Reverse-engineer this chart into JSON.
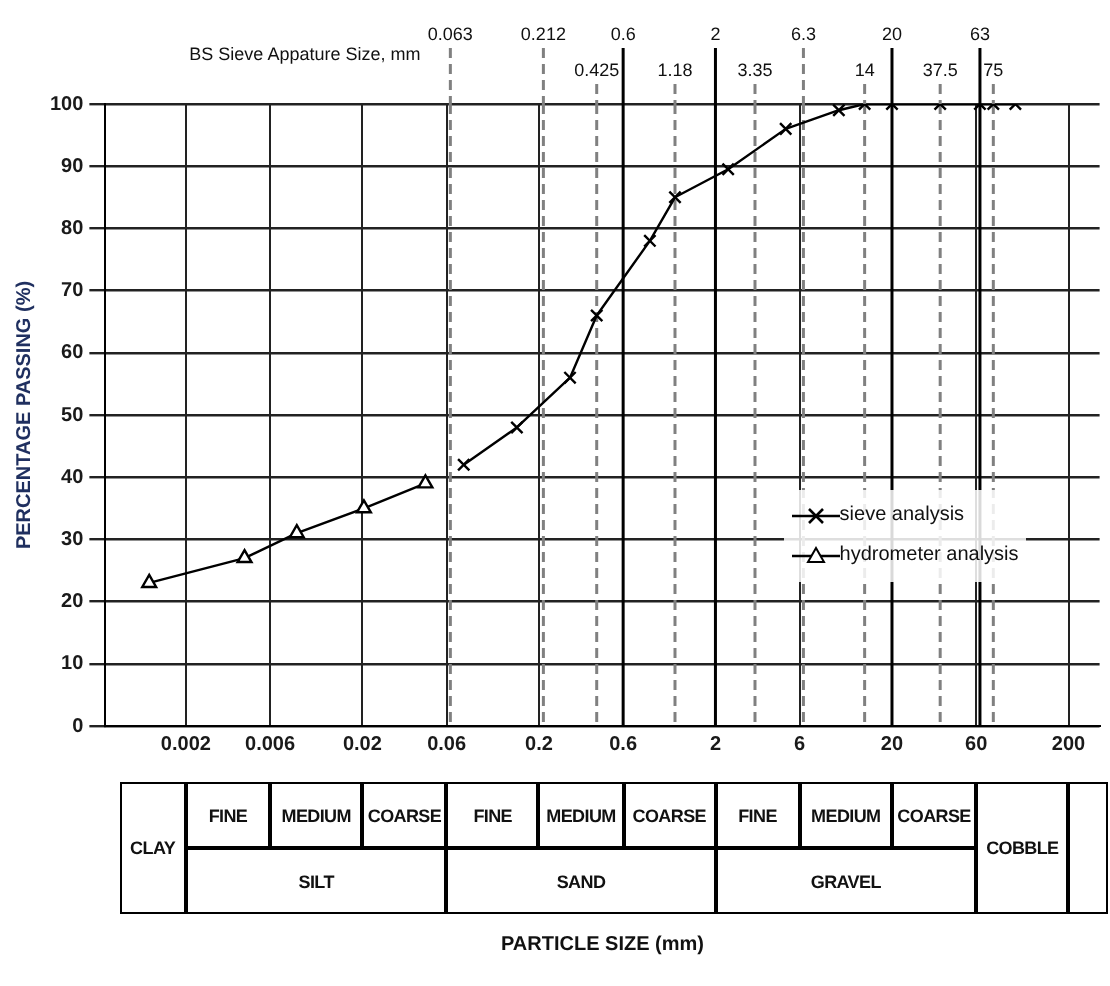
{
  "chart_data": {
    "type": "line",
    "ylabel": "PERCENTAGE PASSING (%)",
    "log": "x",
    "xlim": [
      0.0007,
      300
    ],
    "xticks": [
      0.002,
      0.006,
      0.02,
      0.06,
      0.2,
      0.6,
      2,
      6,
      20,
      60,
      200
    ],
    "ylim": [
      0,
      100
    ],
    "yticks": [
      0,
      10,
      20,
      30,
      40,
      50,
      60,
      70,
      80,
      90,
      100
    ],
    "grid": true,
    "legend": "right",
    "series": [
      {
        "name": "sieve analysis",
        "color": "#000000",
        "marker": "cross",
        "x": [
          0.075,
          0.15,
          0.3,
          0.425,
          0.85,
          1.18,
          2.36,
          5,
          10,
          14,
          20,
          37.5,
          63,
          75,
          100
        ],
        "values": [
          42,
          48,
          56,
          66,
          78,
          85,
          89.5,
          96,
          99,
          100,
          100,
          100,
          100,
          100,
          100
        ]
      },
      {
        "name": "hydrometer analysis",
        "color": "#000000",
        "marker": "triangle",
        "x": [
          0.00124,
          0.0043,
          0.0085,
          0.0204,
          0.0455
        ],
        "values": [
          23,
          27,
          31,
          35,
          39
        ]
      }
    ],
    "ref_lines": [
      {
        "axis": "x",
        "value": 0.063,
        "label": "0.063",
        "line_style": "dashed",
        "color": "#808080"
      },
      {
        "axis": "x",
        "value": 0.212,
        "label": "0.212",
        "line_style": "dashed",
        "color": "#808080"
      },
      {
        "axis": "x",
        "value": 0.425,
        "label": "0.425",
        "line_style": "dashed",
        "color": "#808080"
      },
      {
        "axis": "x",
        "value": 0.6,
        "label": "0.6",
        "line_style": "solid",
        "color": "#000000"
      },
      {
        "axis": "x",
        "value": 1.18,
        "label": "1.18",
        "line_style": "dashed",
        "color": "#808080"
      },
      {
        "axis": "x",
        "value": 2,
        "label": "2",
        "line_style": "solid",
        "color": "#000000"
      },
      {
        "axis": "x",
        "value": 3.35,
        "label": "3.35",
        "line_style": "dashed",
        "color": "#808080"
      },
      {
        "axis": "x",
        "value": 6.3,
        "label": "6.3",
        "line_style": "dashed",
        "color": "#808080"
      },
      {
        "axis": "x",
        "value": 14,
        "label": "14",
        "line_style": "dashed",
        "color": "#808080"
      },
      {
        "axis": "x",
        "value": 20,
        "label": "20",
        "line_style": "solid",
        "color": "#000000"
      },
      {
        "axis": "x",
        "value": 37.5,
        "label": "37.5",
        "line_style": "dashed",
        "color": "#808080"
      },
      {
        "axis": "x",
        "value": 63,
        "label": "63",
        "line_style": "solid",
        "color": "#000000"
      },
      {
        "axis": "x",
        "value": 75,
        "label": "75",
        "line_style": "dashed",
        "color": "#808080"
      }
    ],
    "annotations": [
      "BS Sieve Appature Size, mm",
      "CLAY",
      "FINE",
      "MEDIUM",
      "COARSE",
      "SILT",
      "FINE",
      "MEDIUM",
      "COARSE",
      "SAND",
      "FINE",
      "MEDIUM",
      "COARSE",
      "GRAVEL",
      "COBBLE",
      "PARTICLE SIZE (mm)"
    ]
  }
}
